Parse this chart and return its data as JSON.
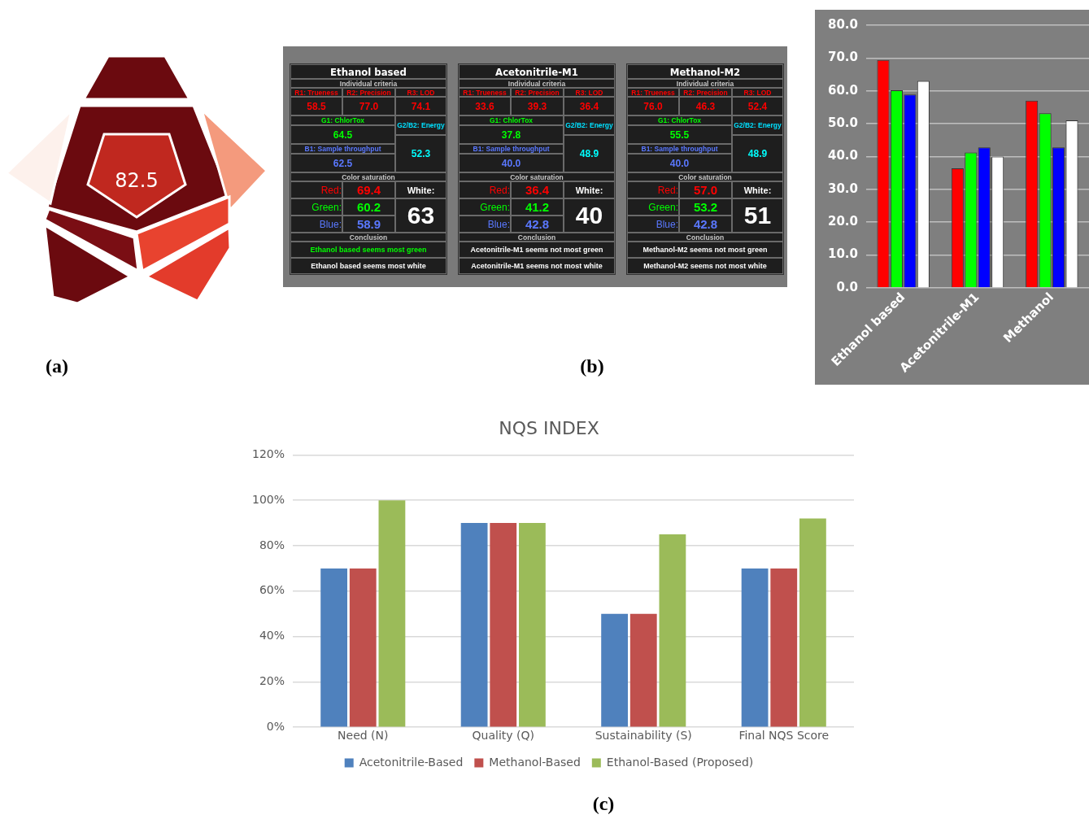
{
  "chart_data": [
    {
      "type": "other",
      "annotations": [
        "82.5",
        "(a)"
      ]
    },
    {
      "type": "other",
      "title": "Ethanol based",
      "colors": [
        "#00ff00",
        "#ffffff"
      ],
      "annotations": [
        "Individual criteria",
        "R1: Trueness",
        "R2: Precision",
        "R3: LOD",
        "58.5",
        "77.0",
        "74.1",
        "G1: ChlorTox",
        "G2/B2: Energy",
        "64.5",
        "B1: Sample throughput",
        "62.5",
        "52.3",
        "Color saturation",
        "Red:",
        "69.4",
        "White:",
        "Green:",
        "60.2",
        "63",
        "Blue:",
        "58.9",
        "Conclusion",
        "Ethanol based seems most green",
        "Ethanol based seems most white"
      ]
    },
    {
      "type": "other",
      "title": "Acetonitrile-M1",
      "colors": [
        "#ffffff",
        "#ffffff"
      ],
      "annotations": [
        "Individual criteria",
        "R1: Trueness",
        "R2: Precision",
        "R3: LOD",
        "33.6",
        "39.3",
        "36.4",
        "G1: ChlorTox",
        "G2/B2: Energy",
        "37.8",
        "B1: Sample throughput",
        "40.0",
        "48.9",
        "Color saturation",
        "Red:",
        "36.4",
        "White:",
        "Green:",
        "41.2",
        "40",
        "Blue:",
        "42.8",
        "Conclusion",
        "Acetonitrile-M1 seems not most green",
        "Acetonitrile-M1 seems not most white",
        "(b)"
      ]
    },
    {
      "type": "other",
      "title": "Methanol-M2",
      "colors": [
        "#ffffff",
        "#ffffff"
      ],
      "annotations": [
        "Individual criteria",
        "R1: Trueness",
        "R2: Precision",
        "R3: LOD",
        "76.0",
        "46.3",
        "52.4",
        "G1: ChlorTox",
        "G2/B2: Energy",
        "55.5",
        "B1: Sample throughput",
        "40.0",
        "48.9",
        "Color saturation",
        "Red:",
        "57.0",
        "White:",
        "Green:",
        "53.2",
        "51",
        "Blue:",
        "42.8",
        "Conclusion",
        "Methanol-M2 seems not most green",
        "Methanol-M2 seems not most white"
      ]
    },
    {
      "type": "bar",
      "categories": [
        "Ethanol based",
        "Acetonitrile-M1",
        "Methanol"
      ],
      "ylim": [
        0,
        80
      ],
      "yticks": [
        {
          "value": 0,
          "label": "0.0"
        },
        {
          "value": 10,
          "label": "10.0"
        },
        {
          "value": 20,
          "label": "20.0"
        },
        {
          "value": 30,
          "label": "30.0"
        },
        {
          "value": 40,
          "label": "40.0"
        },
        {
          "value": 50,
          "label": "50.0"
        },
        {
          "value": 60,
          "label": "60.0"
        },
        {
          "value": 70,
          "label": "70.0"
        },
        {
          "value": 80,
          "label": "80.0"
        }
      ],
      "grid": "y",
      "legend": false,
      "series": [
        {
          "color": "#ff0000",
          "values": [
            69.4,
            36.4,
            57.0
          ]
        },
        {
          "color": "#00ff00",
          "values": [
            60.2,
            41.2,
            53.2
          ]
        },
        {
          "color": "#0000ff",
          "values": [
            58.9,
            42.8,
            42.8
          ]
        },
        {
          "color": "#ffffff",
          "values": [
            63,
            40,
            51
          ]
        }
      ]
    },
    {
      "type": "bar",
      "title": "NQS INDEX",
      "categories": [
        "Need (N)",
        "Quality (Q)",
        "Sustainability (S)",
        "Final NQS Score"
      ],
      "ylim": [
        0,
        120
      ],
      "yticks": [
        {
          "value": 0,
          "label": "0%"
        },
        {
          "value": 20,
          "label": "20%"
        },
        {
          "value": 40,
          "label": "40%"
        },
        {
          "value": 60,
          "label": "60%"
        },
        {
          "value": 80,
          "label": "80%"
        },
        {
          "value": 100,
          "label": "100%"
        },
        {
          "value": 120,
          "label": "120%"
        }
      ],
      "grid": "y",
      "legend": "bottom",
      "annotations": [
        "(c)"
      ],
      "series": [
        {
          "name": "Acetonitrile-Based",
          "color": "#4f81bd",
          "values": [
            70,
            90,
            50,
            70
          ]
        },
        {
          "name": "Methanol-Based",
          "color": "#c0504d",
          "values": [
            70,
            90,
            50,
            70
          ]
        },
        {
          "name": "Ethanol-Based (Proposed)",
          "color": "#9bbb59",
          "values": [
            100,
            90,
            85,
            92
          ]
        }
      ]
    }
  ]
}
